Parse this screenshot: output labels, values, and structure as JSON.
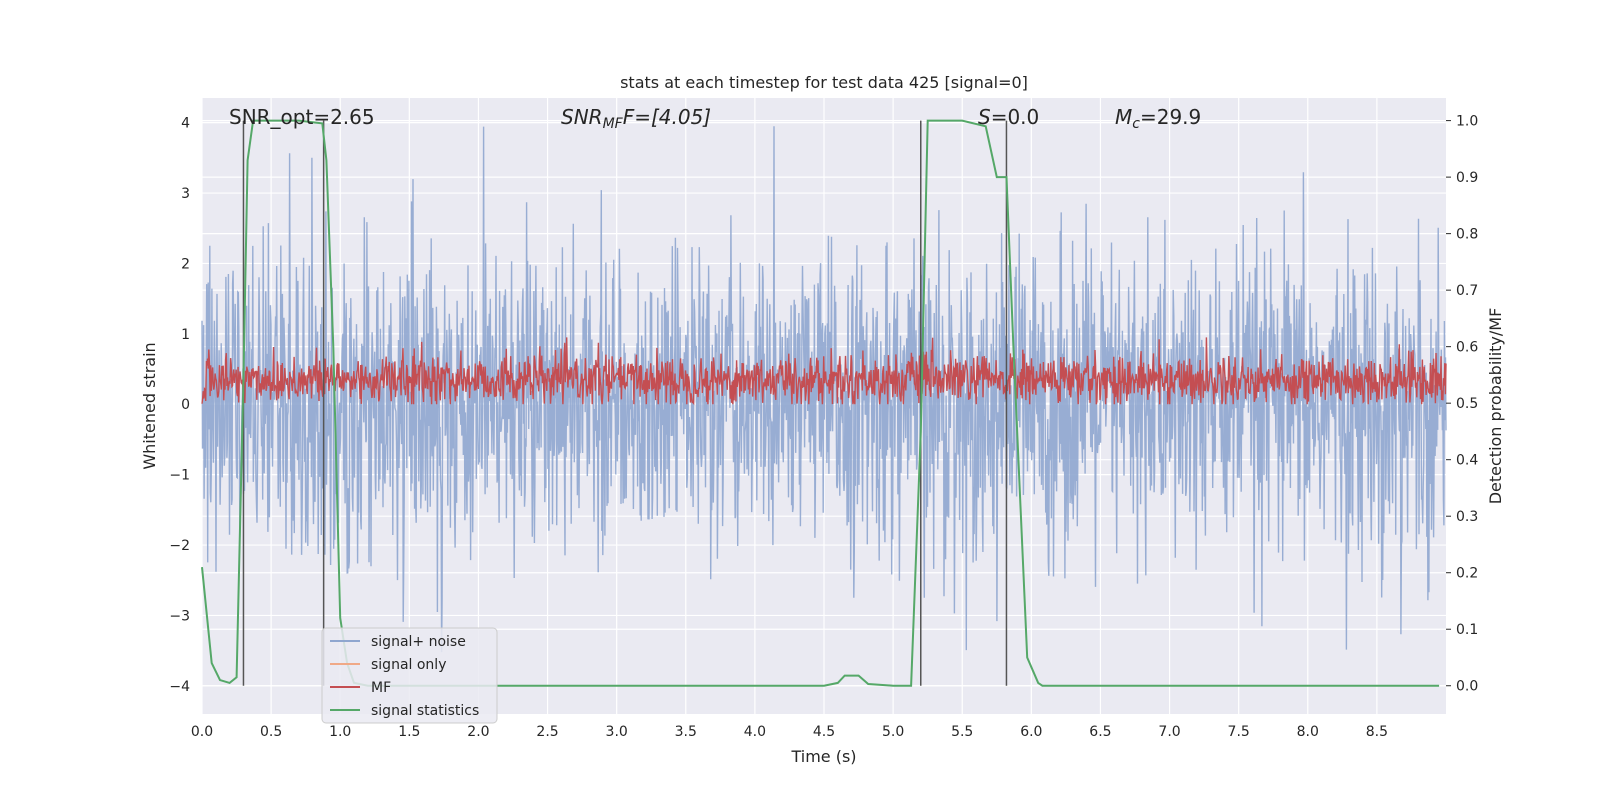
{
  "chart_data": {
    "type": "line",
    "title": "stats at each timestep for test data 425 [signal=0]",
    "xlabel": "Time (s)",
    "ylabel": "Whitened strain",
    "y2label": "Detection probability/MF",
    "xlim": [
      0.0,
      9.0
    ],
    "ylim": [
      -4.4,
      4.35
    ],
    "y2lim": [
      -0.05,
      1.04
    ],
    "xticks": [
      "0.0",
      "0.5",
      "1.0",
      "1.5",
      "2.0",
      "2.5",
      "3.0",
      "3.5",
      "4.0",
      "4.5",
      "5.0",
      "5.5",
      "6.0",
      "6.5",
      "7.0",
      "7.5",
      "8.0",
      "8.5"
    ],
    "xtick_values": [
      0.0,
      0.5,
      1.0,
      1.5,
      2.0,
      2.5,
      3.0,
      3.5,
      4.0,
      4.5,
      5.0,
      5.5,
      6.0,
      6.5,
      7.0,
      7.5,
      8.0,
      8.5
    ],
    "yticks": [
      "4",
      "3",
      "2",
      "1",
      "0",
      "−1",
      "−2",
      "−3",
      "−4"
    ],
    "ytick_values": [
      4,
      3,
      2,
      1,
      0,
      -1,
      -2,
      -3,
      -4
    ],
    "y2ticks": [
      "1.0",
      "0.9",
      "0.8",
      "0.7",
      "0.6",
      "0.5",
      "0.4",
      "0.3",
      "0.2",
      "0.1",
      "0.0"
    ],
    "y2tick_values": [
      1.0,
      0.9,
      0.8,
      0.7,
      0.6,
      0.5,
      0.4,
      0.3,
      0.2,
      0.1,
      0.0
    ],
    "annotations": {
      "snr_opt": "SNR_opt=2.65",
      "snr_mf_main": "SNR",
      "snr_mf_sub": "MF",
      "snr_mf_tail": "F=[4.05]",
      "s_main": "S",
      "s_tail": "=0.0",
      "mc_main": "M",
      "mc_sub": "c",
      "mc_tail": "=29.9"
    },
    "series": [
      {
        "name": "signal+ noise",
        "color": "#8fa6cf",
        "axis": "left",
        "description": "whitened strain noise, symmetric about 0 with spikes to about ±4",
        "approx_range": [
          -3.9,
          3.95
        ]
      },
      {
        "name": "signal only",
        "color": "#f0a987",
        "axis": "left",
        "values": []
      },
      {
        "name": "MF",
        "color": "#c44e52",
        "axis": "left",
        "description": "matched filter band roughly between 0.0 and 0.9",
        "approx_range": [
          0.0,
          0.95
        ]
      },
      {
        "name": "signal statistics",
        "color": "#55a868",
        "axis": "right",
        "x": [
          0.0,
          0.07,
          0.13,
          0.2,
          0.25,
          0.3,
          0.33,
          0.37,
          0.5,
          0.7,
          0.87,
          0.9,
          0.95,
          1.0,
          1.05,
          1.1,
          1.2,
          2.0,
          3.0,
          4.0,
          4.5,
          4.6,
          4.65,
          4.75,
          4.82,
          5.0,
          5.13,
          5.2,
          5.25,
          5.4,
          5.5,
          5.67,
          5.75,
          5.82,
          5.87,
          5.97,
          6.05,
          6.08,
          6.15,
          6.3,
          7.0,
          8.0,
          8.95
        ],
        "y": [
          0.21,
          0.04,
          0.01,
          0.005,
          0.015,
          0.55,
          0.93,
          1.0,
          1.0,
          1.0,
          0.995,
          0.93,
          0.6,
          0.12,
          0.04,
          0.005,
          0.0,
          0.0,
          0.0,
          0.0,
          0.0,
          0.005,
          0.018,
          0.018,
          0.003,
          0.0,
          0.0,
          0.45,
          1.0,
          1.0,
          1.0,
          0.99,
          0.9,
          0.9,
          0.6,
          0.05,
          0.005,
          0.0,
          0.0,
          0.0,
          0.0,
          0.0,
          0.0
        ]
      }
    ],
    "vertical_markers": [
      0.3,
      0.88,
      5.2,
      5.82
    ],
    "legend": {
      "location": "lower-left",
      "entries": [
        "signal+ noise",
        "signal only",
        "MF",
        "signal statistics"
      ]
    },
    "grid": true
  }
}
